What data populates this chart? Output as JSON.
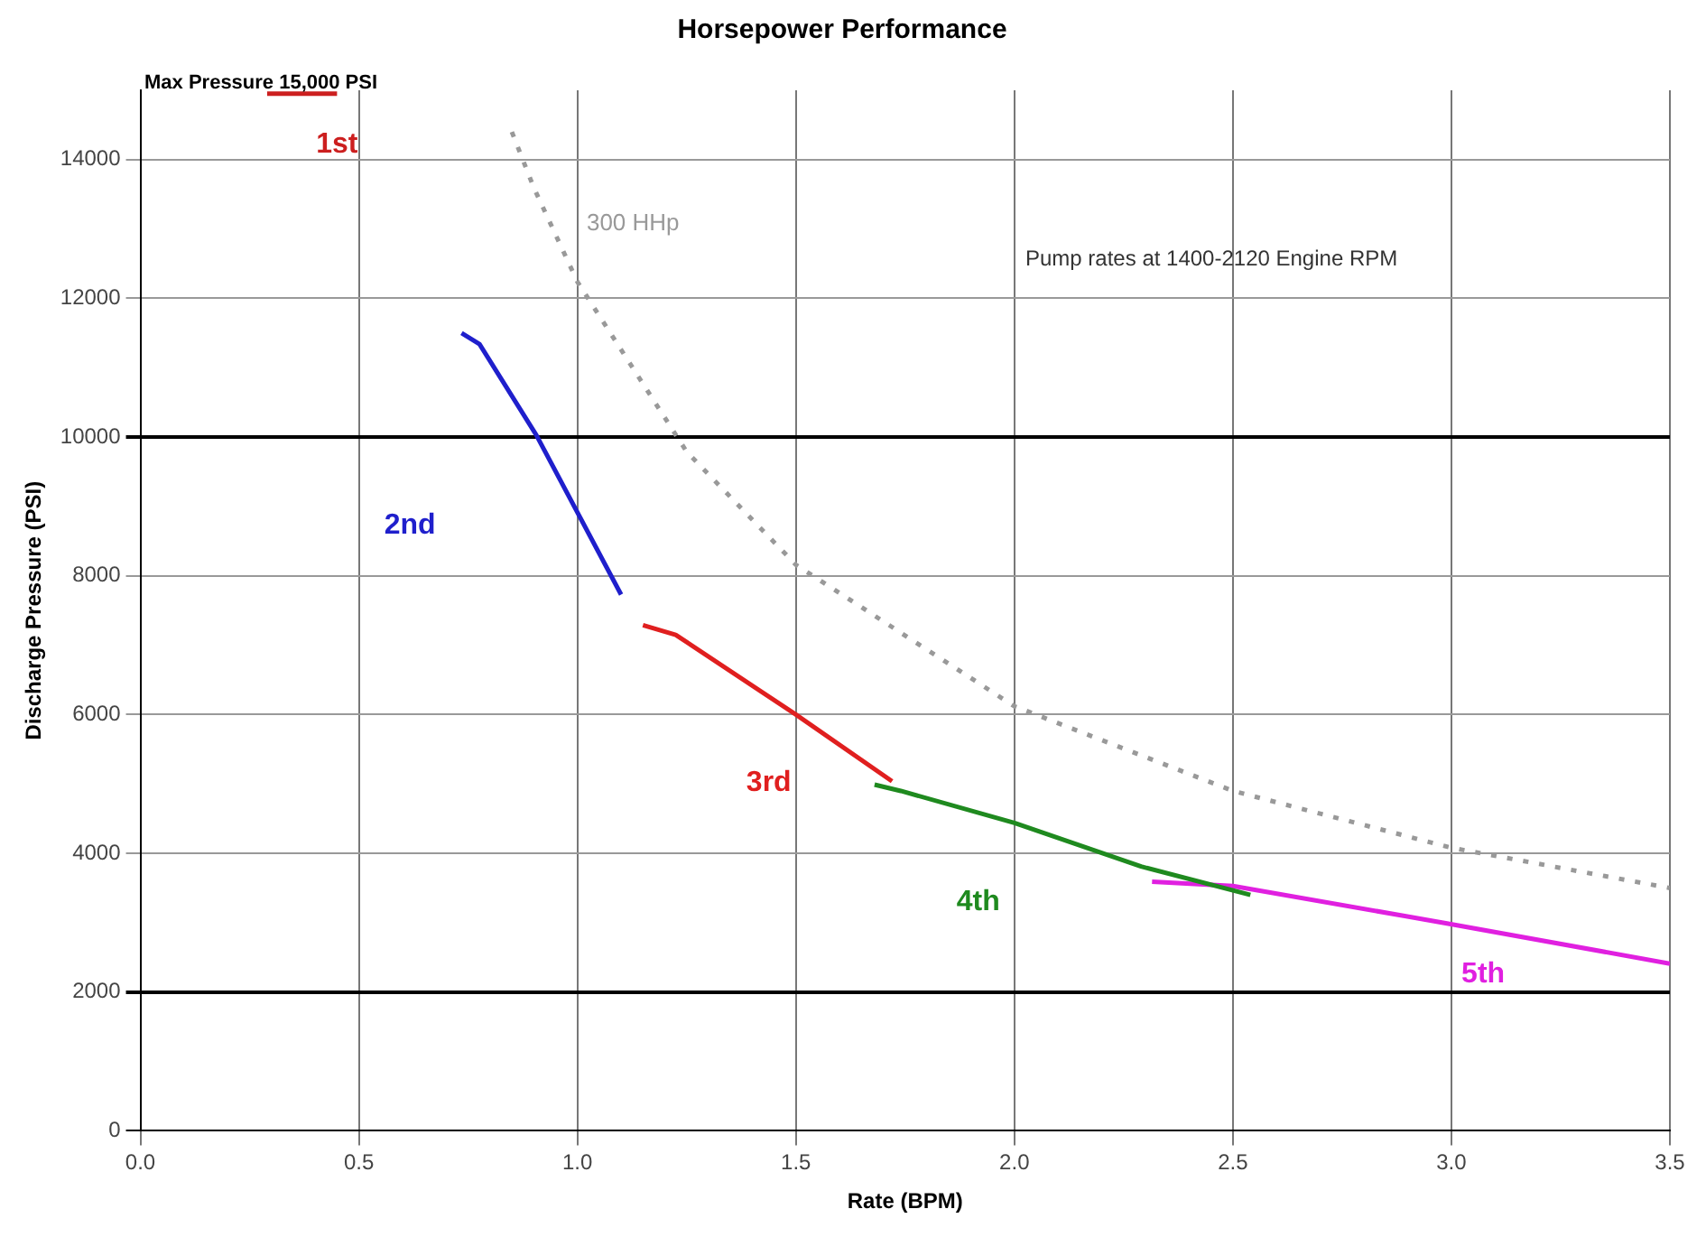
{
  "chart_data": {
    "type": "line",
    "title": "Horsepower Performance",
    "xlabel": "Rate (BPM)",
    "ylabel": "Discharge Pressure (PSI)",
    "annotations": [
      "Max Pressure 15,000 PSI",
      "Pump rates at 1400-2120 Engine RPM"
    ],
    "xlim": [
      0,
      3.5
    ],
    "xticks": [
      {
        "value": 0,
        "label": "0.0"
      },
      {
        "value": 0.5,
        "label": "0.5"
      },
      {
        "value": 1,
        "label": "1.0"
      },
      {
        "value": 1.5,
        "label": "1.5"
      },
      {
        "value": 2,
        "label": "2.0"
      },
      {
        "value": 2.5,
        "label": "2.5"
      },
      {
        "value": 3,
        "label": "3.0"
      },
      {
        "value": 3.5,
        "label": "3.5"
      }
    ],
    "ylim": [
      0,
      15000
    ],
    "yticks": [
      0,
      2000,
      4000,
      6000,
      8000,
      10000,
      12000,
      14000
    ],
    "grid": true,
    "legend": false,
    "marker": "none",
    "series": [
      {
        "name": "1st",
        "color": "#cc1f1f",
        "x": [
          0.29,
          0.45
        ],
        "values": [
          14950,
          14950
        ]
      },
      {
        "name": "2nd",
        "color": "#1f1fcc",
        "x": [
          0.735,
          0.776,
          0.906,
          1.1
        ],
        "values": [
          11500,
          11340,
          10030,
          7730
        ]
      },
      {
        "name": "3rd",
        "color": "#e01f1f",
        "x": [
          1.15,
          1.225,
          1.5,
          1.72
        ],
        "values": [
          7290,
          7150,
          6000,
          5040
        ]
      },
      {
        "name": "4th",
        "color": "#1f8a1f",
        "x": [
          1.68,
          1.74,
          2.0,
          2.29,
          2.54
        ],
        "values": [
          4990,
          4900,
          4440,
          3810,
          3400
        ]
      },
      {
        "name": "5th",
        "color": "#e020e0",
        "x": [
          2.315,
          2.5,
          2.99,
          3.5
        ],
        "values": [
          3590,
          3530,
          2990,
          2410
        ]
      },
      {
        "name": "300 HHp",
        "color": "#999999",
        "line_style": "dotted",
        "x": [
          0.85,
          0.9,
          1.0,
          1.25,
          1.5,
          2.0,
          2.5,
          3.0,
          3.5
        ],
        "values": [
          14400,
          13600,
          12240,
          9790,
          8160,
          6120,
          4900,
          4080,
          3500
        ]
      }
    ]
  }
}
